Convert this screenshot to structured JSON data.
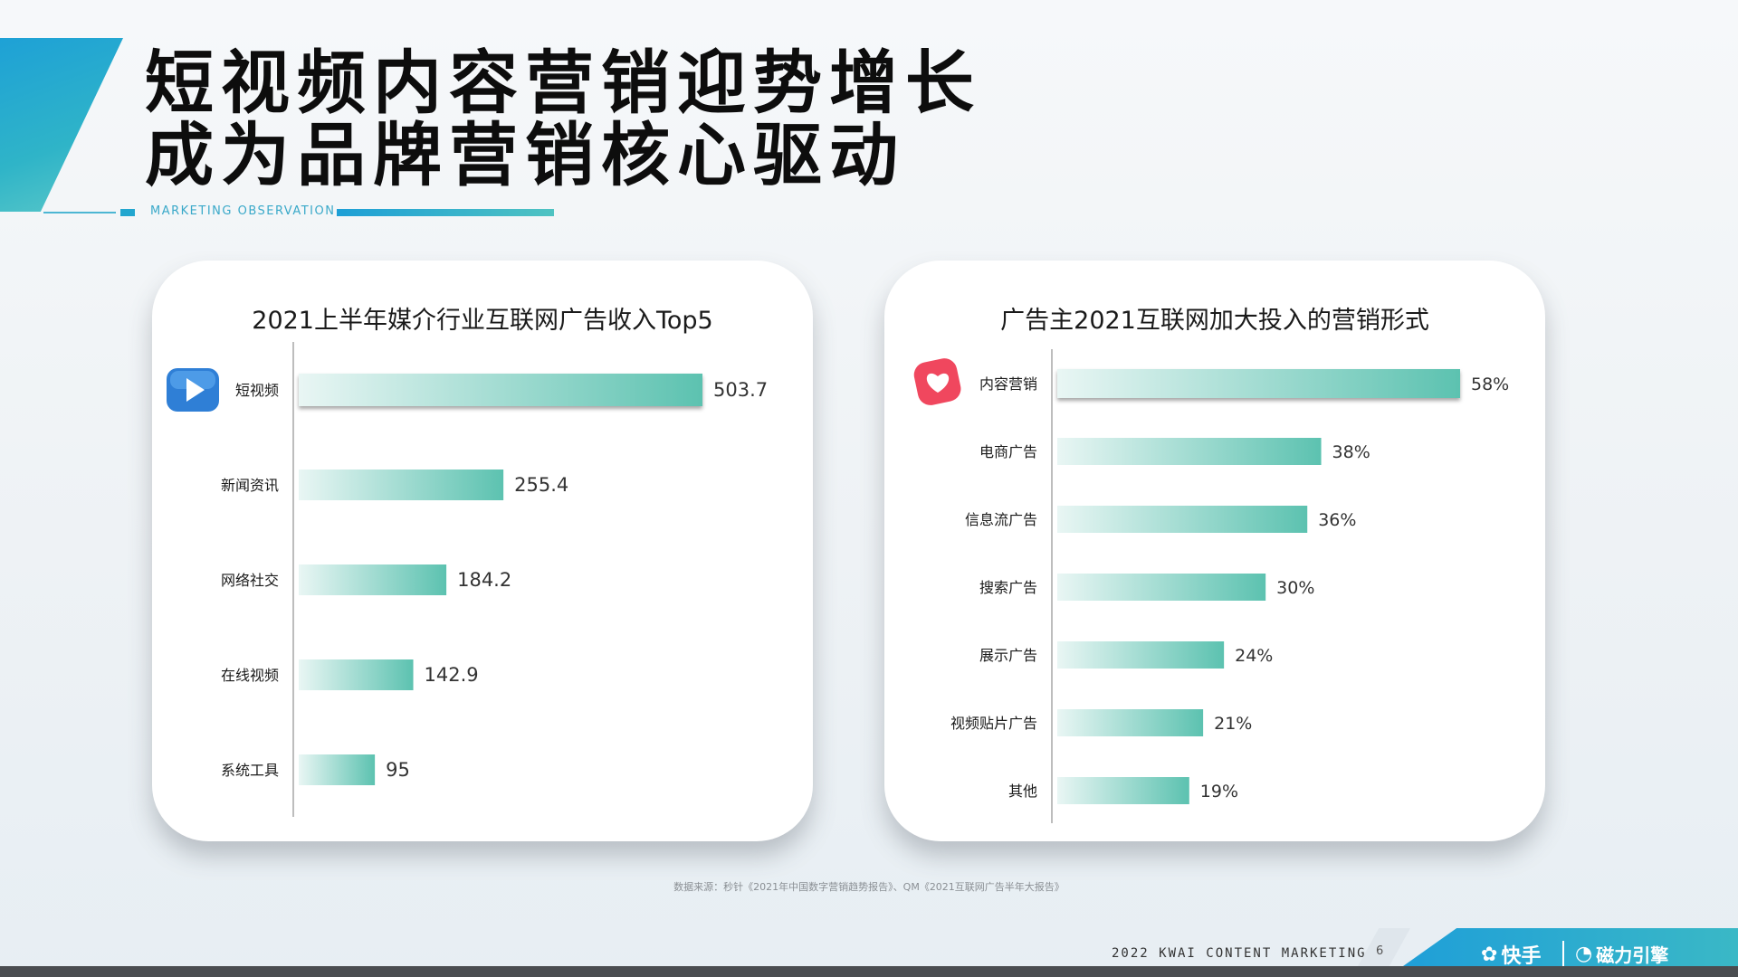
{
  "header": {
    "title_lines": [
      "短视频内容营销迎势增长",
      "成为品牌营销核心驱动"
    ],
    "subtitle": "MARKETING OBSERVATION"
  },
  "chart_data": [
    {
      "type": "bar",
      "orientation": "horizontal",
      "title": "2021上半年媒介行业互联网广告收入Top5",
      "categories": [
        "短视频",
        "新闻资讯",
        "网络社交",
        "在线视频",
        "系统工具"
      ],
      "values": [
        503.7,
        255.4,
        184.2,
        142.9,
        95
      ],
      "value_labels": [
        "503.7",
        "255.4",
        "184.2",
        "142.9",
        "95"
      ],
      "xlim": [
        0,
        503.7
      ],
      "highlight_index": 0,
      "highlight_icon": "play-icon",
      "grid": false
    },
    {
      "type": "bar",
      "orientation": "horizontal",
      "title": "广告主2021互联网加大投入的营销形式",
      "categories": [
        "内容营销",
        "电商广告",
        "信息流广告",
        "搜索广告",
        "展示广告",
        "视频贴片广告",
        "其他"
      ],
      "values": [
        58,
        38,
        36,
        30,
        24,
        21,
        19
      ],
      "value_labels": [
        "58%",
        "38%",
        "36%",
        "30%",
        "24%",
        "21%",
        "19%"
      ],
      "xlim": [
        0,
        58
      ],
      "highlight_index": 0,
      "highlight_icon": "heart-icon",
      "grid": false
    }
  ],
  "footnote": "数据来源：秒针《2021年中国数字营销趋势报告》、QM《2021互联网广告半年大报告》",
  "footer": {
    "tagline": "2022 KWAI CONTENT MARKETING",
    "page_number": "6",
    "brand_kuaishou": "快手",
    "brand_cili": "磁力引擎"
  },
  "colors": {
    "bar_start": "#e9f6f4",
    "bar_end": "#5cc2b0",
    "accent_blue": "#1ea1d6",
    "play_icon": "#2f7fd6",
    "heart_icon": "#f0475e"
  }
}
